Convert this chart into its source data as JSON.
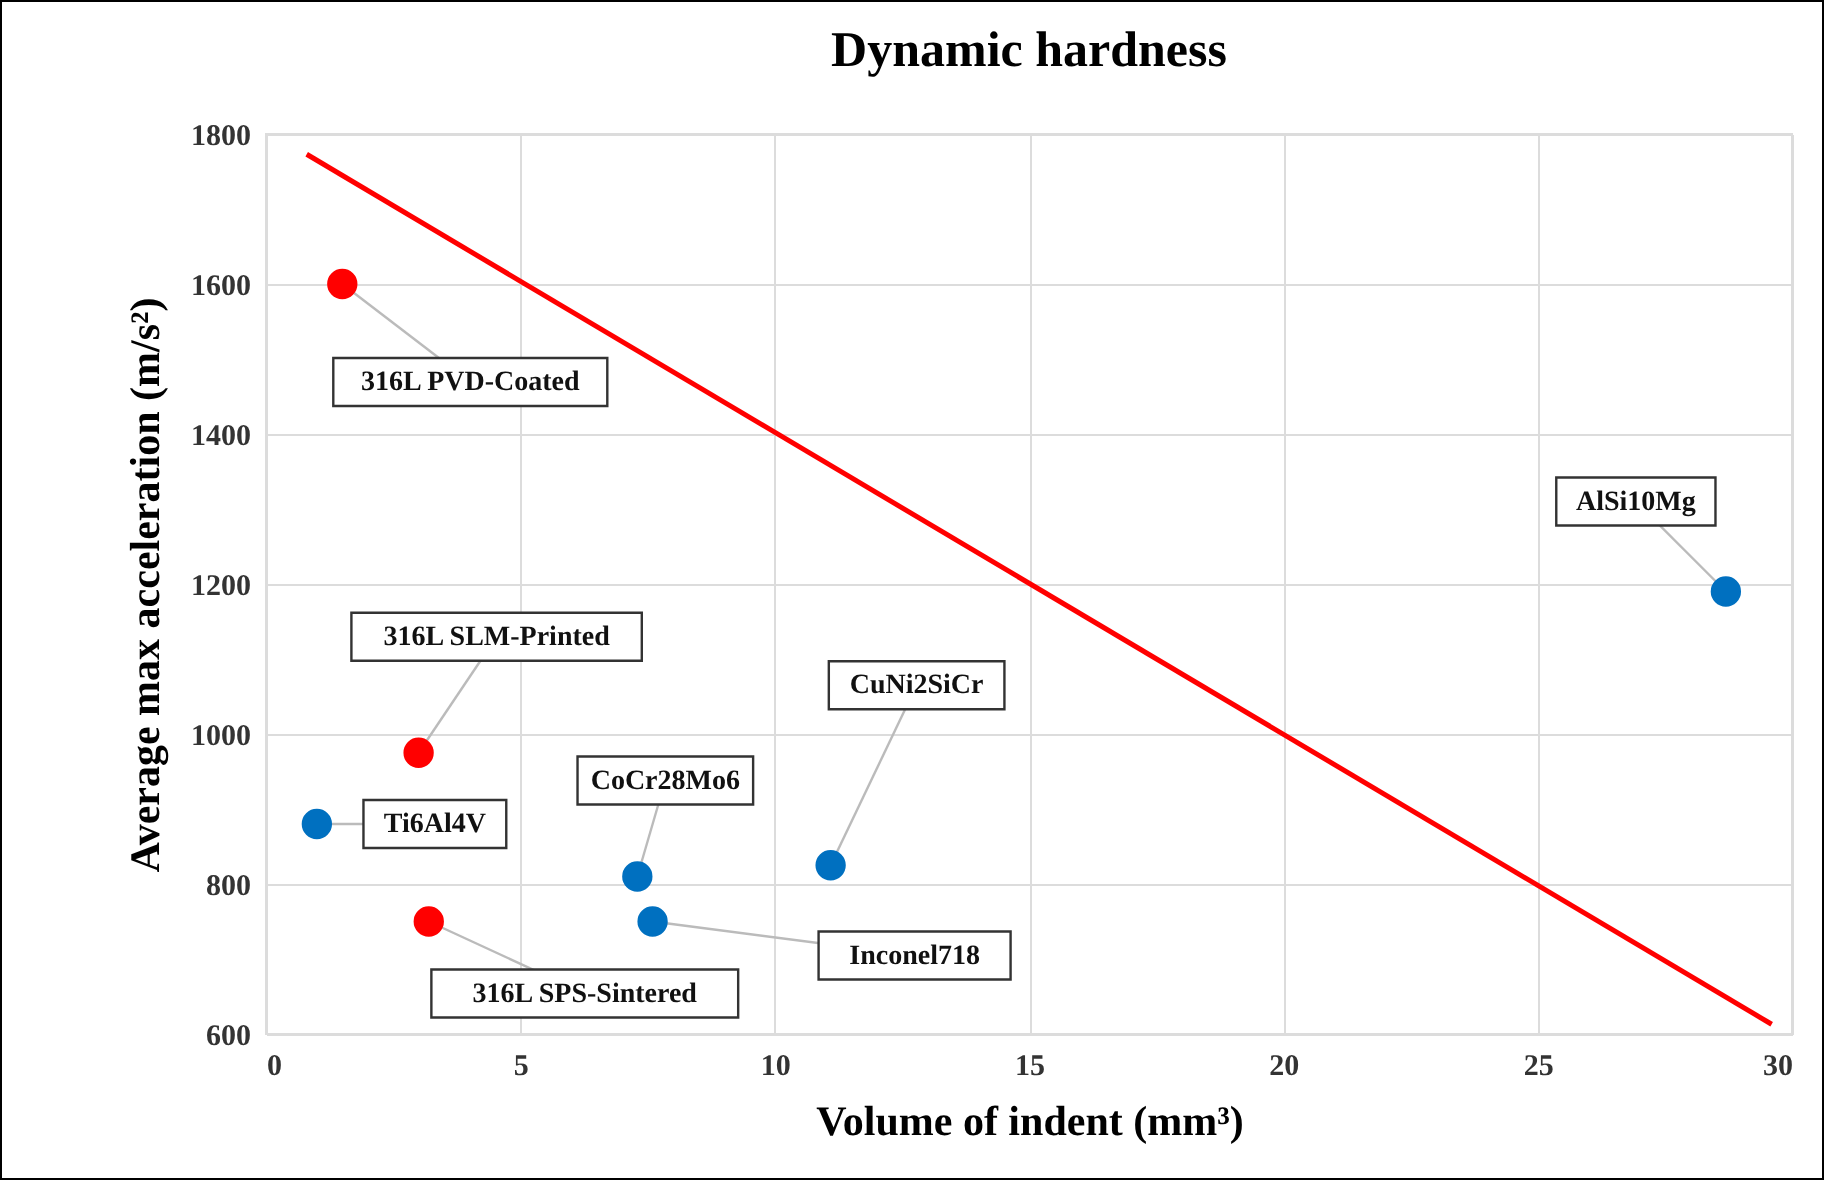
{
  "chart_data": {
    "type": "scatter",
    "title": "Dynamic hardness",
    "xlabel": "Volume of indent (mm³)",
    "ylabel": "Average max acceleration (m/s²)",
    "series": [
      {
        "color": "#ff0000",
        "marker": "circle",
        "x": [
          1.5,
          3.0,
          3.2
        ],
        "values": [
          1600,
          975,
          750
        ]
      },
      {
        "color": "#0070c0",
        "marker": "circle",
        "x": [
          1.0,
          7.3,
          7.6,
          11.1,
          28.7
        ],
        "values": [
          880,
          810,
          750,
          825,
          1190
        ]
      },
      {
        "type": "line",
        "color": "#ff0000",
        "x": [
          0.8,
          29.6
        ],
        "values": [
          1773,
          613
        ]
      }
    ],
    "annotations": [
      {
        "text": "316L PVD-Coated",
        "x": 1.5,
        "y": 1600
      },
      {
        "text": "316L SLM-Printed",
        "x": 3.0,
        "y": 975
      },
      {
        "text": "316L SPS-Sintered",
        "x": 3.2,
        "y": 750
      },
      {
        "text": "Ti6Al4V",
        "x": 1.0,
        "y": 880
      },
      {
        "text": "CoCr28Mo6",
        "x": 7.3,
        "y": 810
      },
      {
        "text": "Inconel718",
        "x": 7.6,
        "y": 750
      },
      {
        "text": "CuNi2SiCr",
        "x": 11.1,
        "y": 825
      },
      {
        "text": "AlSi10Mg",
        "x": 28.7,
        "y": 1190
      }
    ],
    "xlim": [
      0,
      30
    ],
    "xticks": [
      0,
      5,
      10,
      15,
      20,
      25,
      30
    ],
    "ylim": [
      600,
      1800
    ],
    "yticks": [
      600,
      800,
      1000,
      1200,
      1400,
      1600,
      1800
    ],
    "grid": true,
    "legend": false,
    "line_style": "solid"
  }
}
